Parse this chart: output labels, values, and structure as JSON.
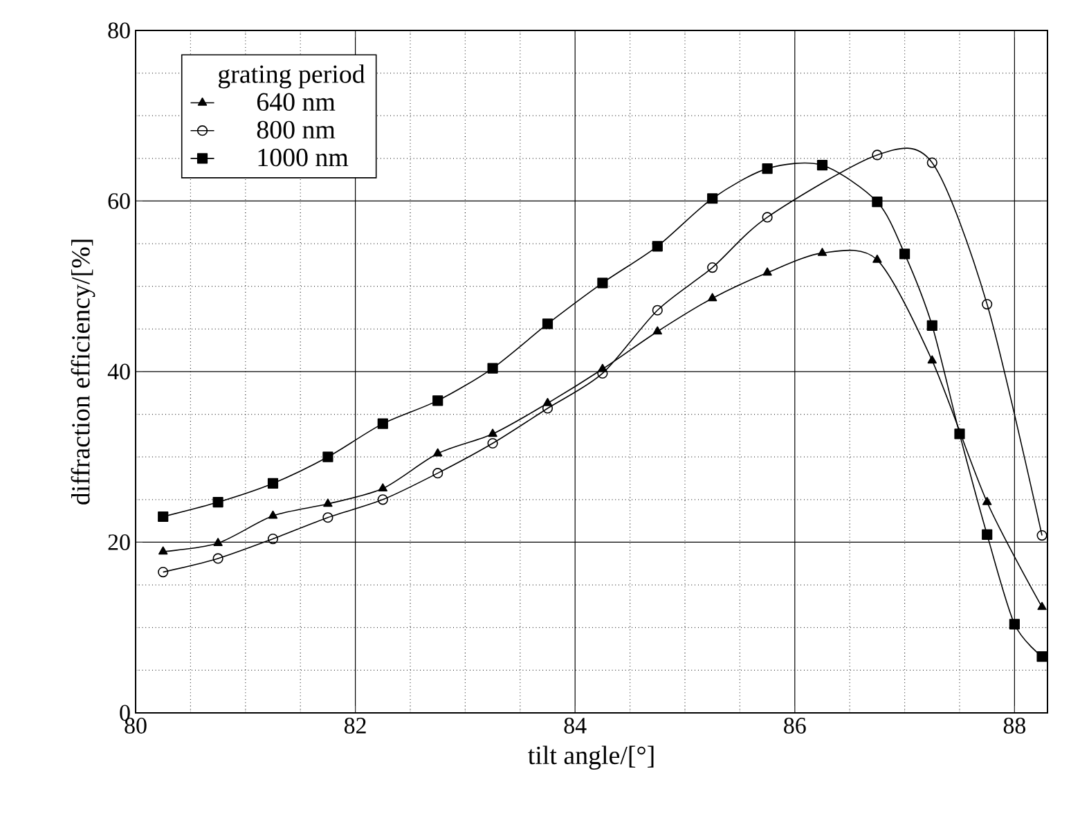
{
  "chart_data": {
    "type": "line",
    "xlabel": "tilt angle/[°]",
    "ylabel": "diffraction efficiency/[%]",
    "legend_title": "grating period",
    "legend": "top left",
    "grid": true,
    "xlim": [
      80,
      88.3
    ],
    "ylim": [
      0,
      80
    ],
    "xticks": [
      80,
      82,
      84,
      86,
      88
    ],
    "yticks": [
      0,
      20,
      40,
      60,
      80
    ],
    "series": [
      {
        "name": "640 nm",
        "color": "#000000",
        "marker": "triangle",
        "x": [
          80.25,
          80.75,
          81.25,
          81.75,
          82.25,
          82.75,
          83.25,
          83.75,
          84.25,
          84.75,
          85.25,
          85.75,
          86.25,
          86.75,
          87.25,
          87.75,
          88.25
        ],
        "values": [
          18.9,
          19.9,
          23.1,
          24.5,
          26.3,
          30.4,
          32.7,
          36.3,
          40.3,
          44.7,
          48.6,
          51.6,
          53.9,
          53.1,
          41.3,
          24.7,
          12.4
        ]
      },
      {
        "name": "800 nm",
        "color": "#000000",
        "marker": "circle",
        "x": [
          80.25,
          80.75,
          81.25,
          81.75,
          82.25,
          82.75,
          83.25,
          83.75,
          84.25,
          84.75,
          85.25,
          85.75,
          86.75,
          87.25,
          87.75,
          88.25
        ],
        "values": [
          16.5,
          18.1,
          20.4,
          22.9,
          25,
          28.1,
          31.6,
          35.7,
          39.8,
          47.2,
          52.2,
          58.1,
          65.4,
          64.5,
          47.9,
          20.8
        ]
      },
      {
        "name": "1000 nm",
        "color": "#000000",
        "marker": "square",
        "x": [
          80.25,
          80.75,
          81.25,
          81.75,
          82.25,
          82.75,
          83.25,
          83.75,
          84.25,
          84.75,
          85.25,
          85.75,
          86.25,
          86.75,
          87,
          87.25,
          87.5,
          87.75,
          88,
          88.25
        ],
        "values": [
          23,
          24.7,
          26.9,
          30,
          33.9,
          36.6,
          40.4,
          45.6,
          50.4,
          54.7,
          60.3,
          63.8,
          64.2,
          59.9,
          53.8,
          45.4,
          32.7,
          20.9,
          10.4,
          6.6
        ]
      }
    ]
  }
}
